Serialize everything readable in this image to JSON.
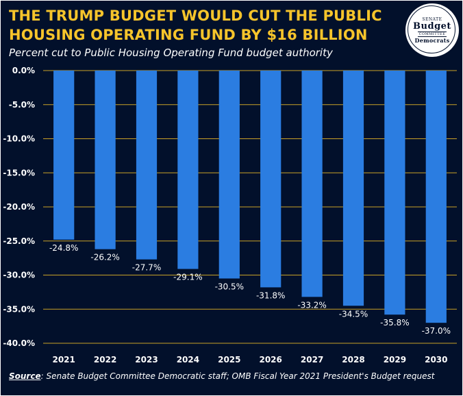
{
  "header": {
    "title": "The Trump Budget Would Cut the Public Housing Operating Fund by $16 Billion",
    "subtitle": "Percent cut to Public Housing Operating Fund budget authority"
  },
  "logo": {
    "line1": "Senate",
    "line2": "Budget",
    "line3": "Committee",
    "line4": "Democrats"
  },
  "source": {
    "label": "Source",
    "text": ": Senate Budget Committee Democratic staff; OMB Fiscal Year 2021 President's Budget request"
  },
  "colors": {
    "background": "#02102b",
    "bar": "#2b7de1",
    "title": "#f6c42b",
    "grid": "#c9a227",
    "text": "#ffffff"
  },
  "chart_data": {
    "type": "bar",
    "categories": [
      "2021",
      "2022",
      "2023",
      "2024",
      "2025",
      "2026",
      "2027",
      "2028",
      "2029",
      "2030"
    ],
    "values": [
      -24.8,
      -26.2,
      -27.7,
      -29.1,
      -30.5,
      -31.8,
      -33.2,
      -34.5,
      -35.8,
      -37.0
    ],
    "value_labels": [
      "-24.8%",
      "-26.2%",
      "-27.7%",
      "-29.1%",
      "-30.5%",
      "-31.8%",
      "-33.2%",
      "-34.5%",
      "-35.8%",
      "-37.0%"
    ],
    "ylim": [
      -40,
      0
    ],
    "yticks": [
      0,
      -5,
      -10,
      -15,
      -20,
      -25,
      -30,
      -35,
      -40
    ],
    "ytick_labels": [
      "0.0%",
      "-5.0%",
      "-10.0%",
      "-15.0%",
      "-20.0%",
      "-25.0%",
      "-30.0%",
      "-35.0%",
      "-40.0%"
    ],
    "grid": true,
    "legend": "none"
  }
}
